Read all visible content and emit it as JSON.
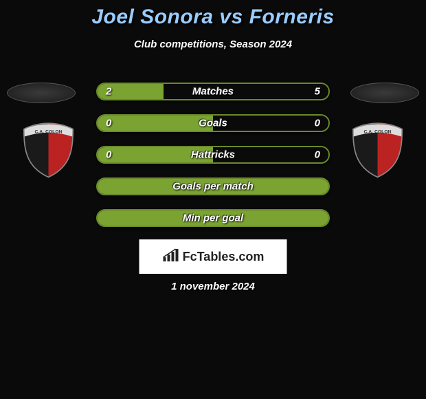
{
  "title": "Joel Sonora vs Forneris",
  "subtitle": "Club competitions, Season 2024",
  "date": "1 november 2024",
  "logo_text": "FcTables.com",
  "colors": {
    "title_color": "#99ccff",
    "bar_fill": "#7aa332",
    "bar_border": "#6a8a2a",
    "background": "#0a0a0a"
  },
  "shield": {
    "label": "C.A. COLON",
    "left_color": "#1a1a1a",
    "right_color": "#bb2222",
    "top_color": "#dddddd",
    "border_color": "#888888"
  },
  "rows": [
    {
      "label": "Matches",
      "left": "2",
      "right": "5",
      "left_pct": 28.5,
      "show_vals": true
    },
    {
      "label": "Goals",
      "left": "0",
      "right": "0",
      "left_pct": 50,
      "show_vals": true
    },
    {
      "label": "Hattricks",
      "left": "0",
      "right": "0",
      "left_pct": 50,
      "show_vals": true
    },
    {
      "label": "Goals per match",
      "left": "",
      "right": "",
      "left_pct": 100,
      "show_vals": false
    },
    {
      "label": "Min per goal",
      "left": "",
      "right": "",
      "left_pct": 100,
      "show_vals": false
    }
  ]
}
